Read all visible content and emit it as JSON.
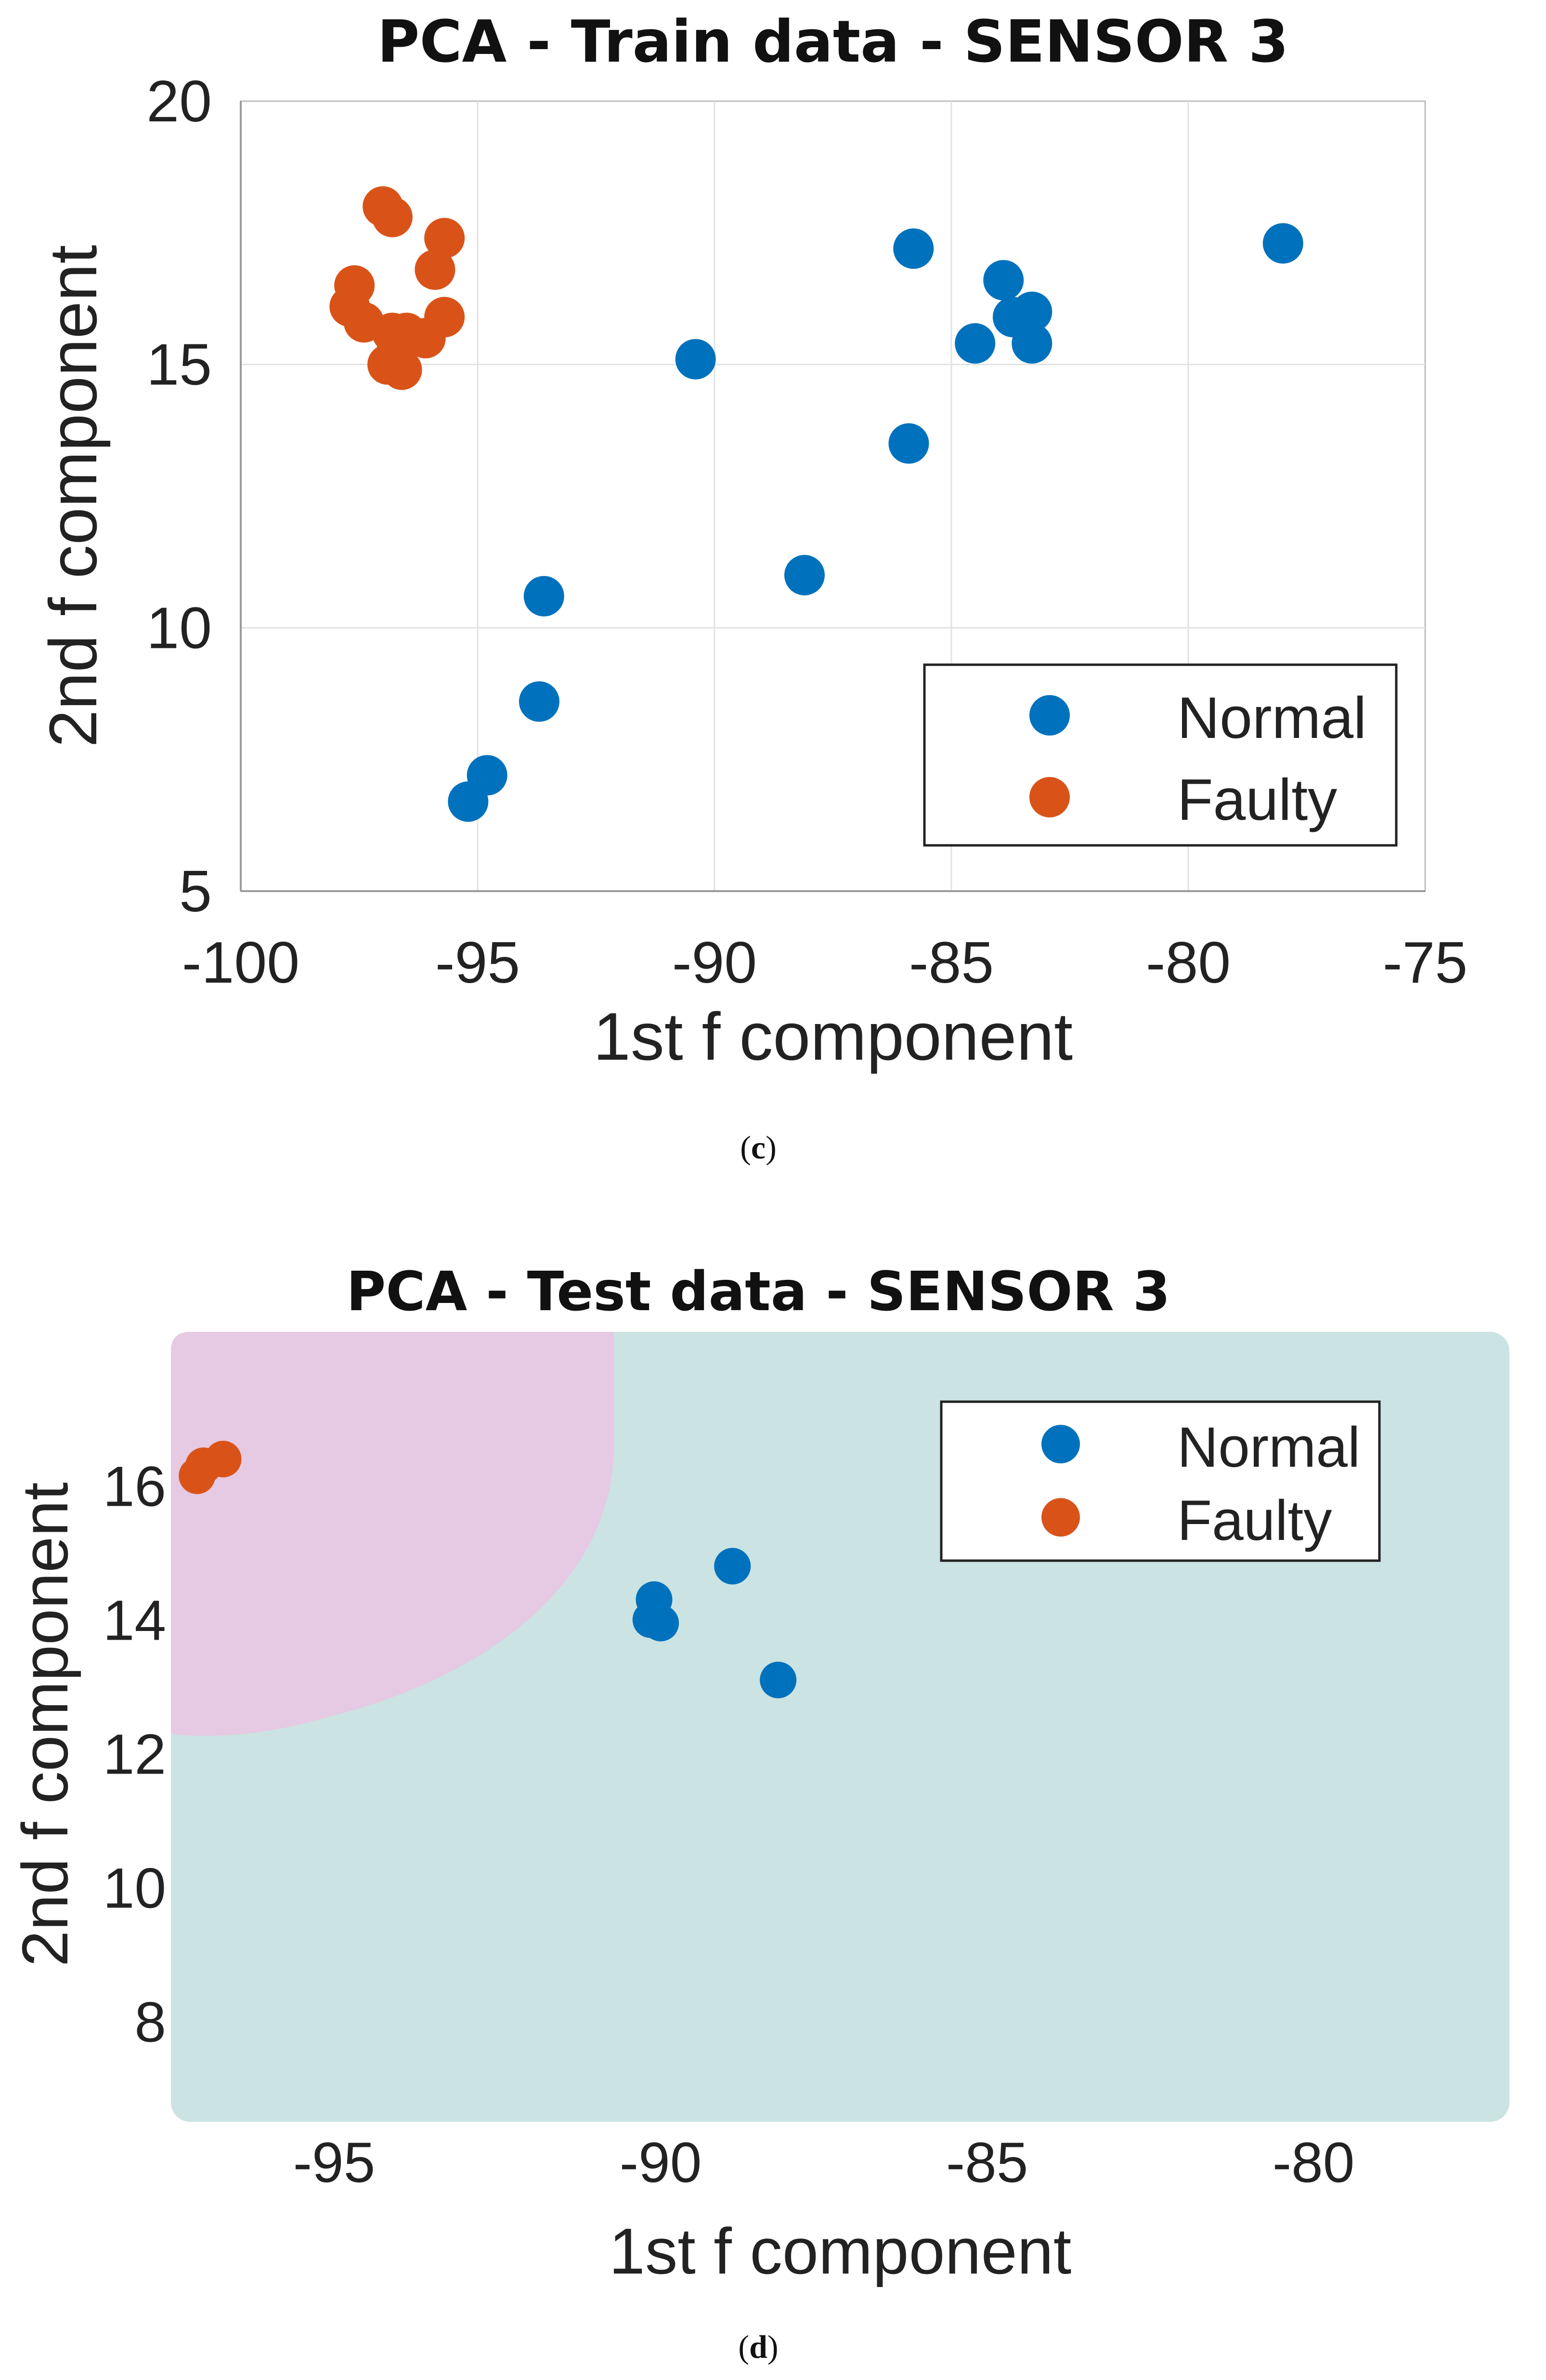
{
  "chart_data": [
    {
      "id": "c",
      "type": "scatter",
      "title": "PCA - Train data - SENSOR 3",
      "xlabel": "1st f component",
      "ylabel": "2nd f component",
      "xlim": [
        -100,
        -75
      ],
      "ylim": [
        5,
        20
      ],
      "xticks": [
        "-100",
        "-95",
        "-90",
        "-85",
        "-80",
        "-75"
      ],
      "yticks": [
        "5",
        "10",
        "15",
        "20"
      ],
      "grid": true,
      "legend_position": "bottom-right",
      "caption_label": "c",
      "series": [
        {
          "name": "Normal",
          "color": "#0072BD",
          "points": [
            [
              -95.2,
              6.7
            ],
            [
              -94.8,
              7.2
            ],
            [
              -93.7,
              8.6
            ],
            [
              -93.6,
              10.6
            ],
            [
              -90.4,
              15.1
            ],
            [
              -88.1,
              11.0
            ],
            [
              -85.9,
              13.5
            ],
            [
              -85.8,
              17.2
            ],
            [
              -84.5,
              15.4
            ],
            [
              -83.9,
              16.6
            ],
            [
              -83.7,
              15.9
            ],
            [
              -83.3,
              16.0
            ],
            [
              -83.3,
              15.4
            ],
            [
              -78.0,
              17.3
            ]
          ]
        },
        {
          "name": "Faulty",
          "color": "#D95319",
          "points": [
            [
              -97.0,
              18.0
            ],
            [
              -96.8,
              17.8
            ],
            [
              -97.6,
              16.5
            ],
            [
              -97.7,
              16.1
            ],
            [
              -97.4,
              15.8
            ],
            [
              -96.8,
              15.6
            ],
            [
              -96.5,
              15.6
            ],
            [
              -96.7,
              15.3
            ],
            [
              -96.6,
              14.9
            ],
            [
              -96.9,
              15.0
            ],
            [
              -96.1,
              15.5
            ],
            [
              -95.9,
              16.8
            ],
            [
              -95.7,
              17.4
            ],
            [
              -95.7,
              15.9
            ]
          ]
        }
      ]
    },
    {
      "id": "d",
      "type": "scatter",
      "title": "PCA - Test data - SENSOR 3",
      "xlabel": "1st f component",
      "ylabel": "2nd f component",
      "xlim": [
        -97.5,
        -77
      ],
      "ylim": [
        6.5,
        18.3
      ],
      "xticks": [
        "-95",
        "-90",
        "-85",
        "-80"
      ],
      "yticks": [
        "8",
        "10",
        "12",
        "14",
        "16"
      ],
      "grid": false,
      "legend_position": "top-right",
      "caption_label": "d",
      "regions": [
        {
          "name": "Normal region",
          "color": "#CBE3E2"
        },
        {
          "name": "Faulty region",
          "color": "#E6C9E2"
        }
      ],
      "series": [
        {
          "name": "Normal",
          "color": "#0072BD",
          "points": [
            [
              -90.1,
              14.3
            ],
            [
              -90.15,
              14.0
            ],
            [
              -90.0,
              13.95
            ],
            [
              -88.9,
              14.8
            ],
            [
              -88.2,
              13.1
            ]
          ]
        },
        {
          "name": "Faulty",
          "color": "#D95319",
          "points": [
            [
              -97.1,
              16.15
            ],
            [
              -97.0,
              16.3
            ],
            [
              -96.7,
              16.4
            ]
          ]
        }
      ]
    }
  ]
}
